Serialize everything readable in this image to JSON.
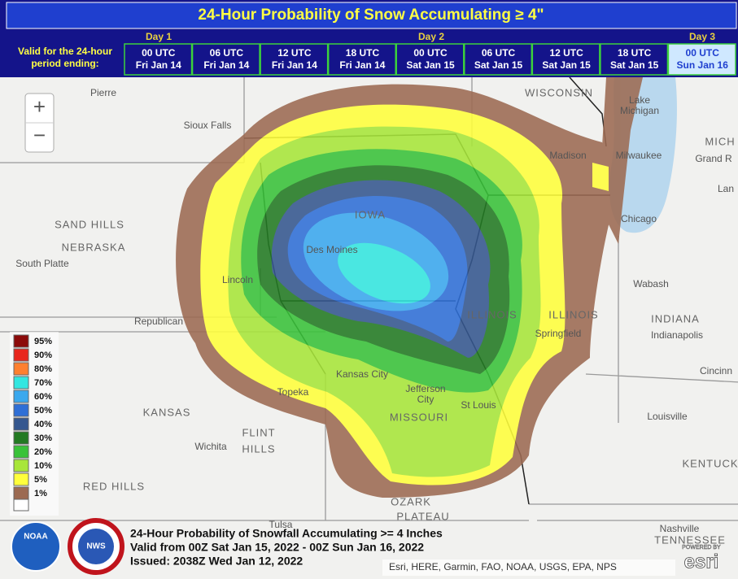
{
  "header": {
    "title": "24-Hour Probability of Snow Accumulating ≥ 4\"",
    "valid_label": [
      "Valid for the 24-hour",
      "period ending:"
    ],
    "days": [
      "Day 1",
      "Day 2",
      "Day 3"
    ],
    "periods": [
      {
        "time": "00 UTC",
        "date": "Fri Jan 14"
      },
      {
        "time": "06 UTC",
        "date": "Fri Jan 14"
      },
      {
        "time": "12 UTC",
        "date": "Fri Jan 14"
      },
      {
        "time": "18 UTC",
        "date": "Fri Jan 14"
      },
      {
        "time": "00 UTC",
        "date": "Sat Jan 15"
      },
      {
        "time": "06 UTC",
        "date": "Sat Jan 15"
      },
      {
        "time": "12 UTC",
        "date": "Sat Jan 15"
      },
      {
        "time": "18 UTC",
        "date": "Sat Jan 15"
      },
      {
        "time": "00 UTC",
        "date": "Sun Jan 16"
      }
    ]
  },
  "zoom": {
    "in": "+",
    "out": "−"
  },
  "legend": [
    {
      "label": "95%",
      "color": "#8b0a0a"
    },
    {
      "label": "90%",
      "color": "#e8261e"
    },
    {
      "label": "80%",
      "color": "#ff8030"
    },
    {
      "label": "70%",
      "color": "#33e6e0"
    },
    {
      "label": "60%",
      "color": "#3aa8ee"
    },
    {
      "label": "50%",
      "color": "#2f6fd6"
    },
    {
      "label": "40%",
      "color": "#35578f"
    },
    {
      "label": "30%",
      "color": "#237a23"
    },
    {
      "label": "20%",
      "color": "#39c239"
    },
    {
      "label": "10%",
      "color": "#a8e63a"
    },
    {
      "label": "5%",
      "color": "#ffff3c"
    },
    {
      "label": "1%",
      "color": "#9c6a52"
    }
  ],
  "map_labels": [
    "Pierre",
    "Sioux Falls",
    "WISCONSIN",
    "Lake",
    "Michigan",
    "MICH",
    "Madison",
    "Milwaukee",
    "Grand R",
    "Lan",
    "Chicago",
    "SAND HILLS",
    "NEBRASKA",
    "South Platte",
    "IOWA",
    "Des Moines",
    "Lincoln",
    "ILLINOIS",
    "ILLINOIS",
    "Wabash",
    "INDIANA",
    "Indianapolis",
    "Republican",
    "Springfield",
    "Cincinn",
    "Kansas City",
    "Topeka",
    "Jefferson",
    "City",
    "St Louis",
    "MISSOURI",
    "KANSAS",
    "Louisville",
    "Wichita",
    "FLINT",
    "HILLS",
    "KENTUCK",
    "RED HILLS",
    "OZARK",
    "PLATEAU",
    "Tulsa",
    "Nashville",
    "TENNESSEE"
  ],
  "footer": [
    "24-Hour Probability of Snowfall Accumulating >= 4 Inches",
    "Valid from 00Z Sat Jan 15, 2022 - 00Z Sun Jan 16, 2022",
    "Issued: 2038Z Wed Jan 12, 2022"
  ],
  "attribution": "Esri, HERE, Garmin, FAO, NOAA, USGS, EPA, NPS",
  "esri": {
    "powered": "POWERED BY",
    "name": "esri"
  },
  "logos": {
    "noaa": "NOAA",
    "nws": "NWS"
  }
}
